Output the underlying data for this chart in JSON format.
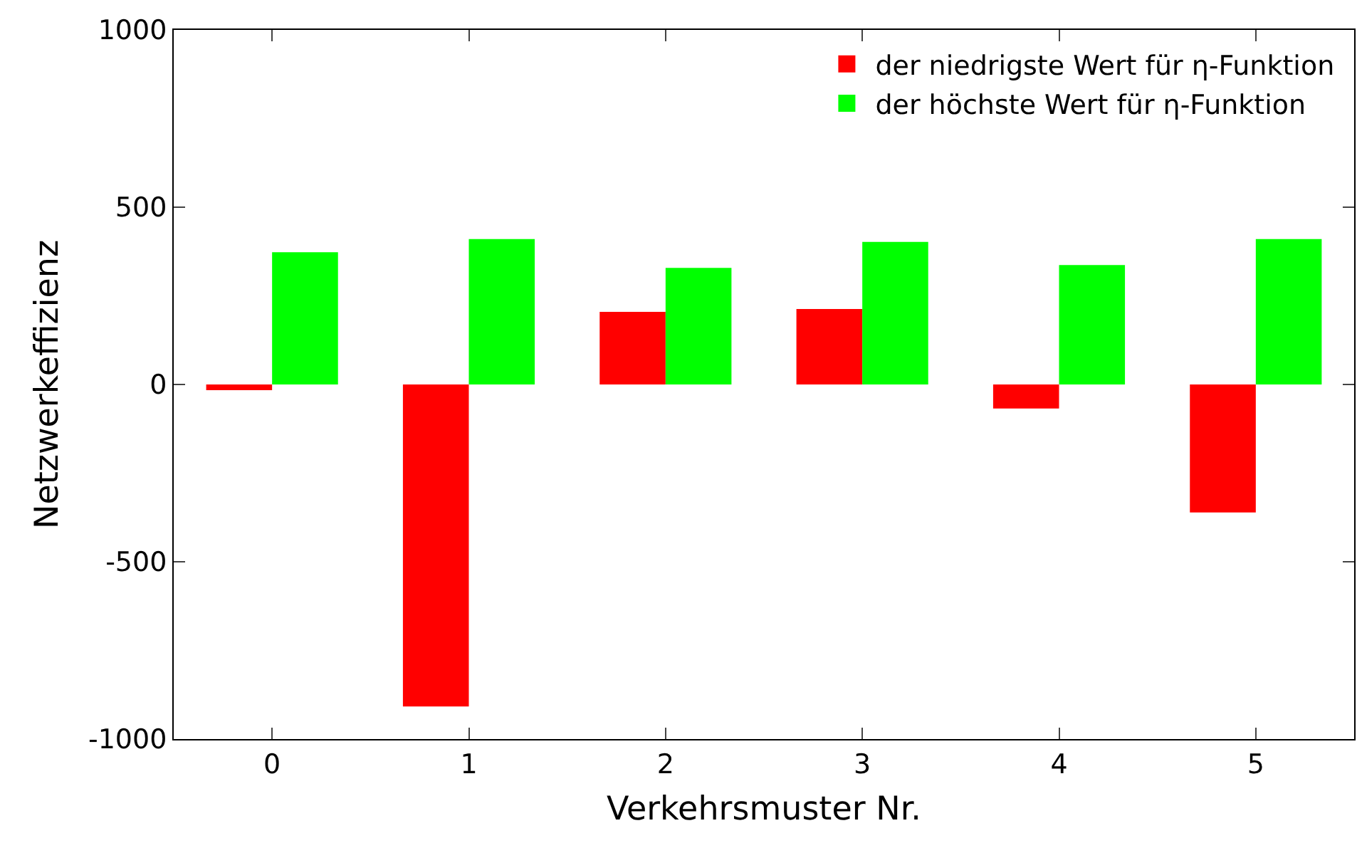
{
  "chart_data": {
    "type": "bar",
    "xlabel": "Verkehrsmuster Nr.",
    "ylabel": "Netzwerkeffizienz",
    "categories": [
      "0",
      "1",
      "2",
      "3",
      "4",
      "5"
    ],
    "series": [
      {
        "name": "der niedrigste Wert für η-Funktion",
        "color": "#ff0000",
        "values": [
          -16,
          -908,
          205,
          213,
          -68,
          -361
        ]
      },
      {
        "name": "der höchste Wert für η-Funktion",
        "color": "#00ff00",
        "values": [
          373,
          410,
          329,
          402,
          337,
          410
        ]
      }
    ],
    "ylim": [
      -1000,
      1000
    ],
    "yticks": [
      -1000,
      -500,
      0,
      500,
      1000
    ],
    "legend": "top right"
  }
}
